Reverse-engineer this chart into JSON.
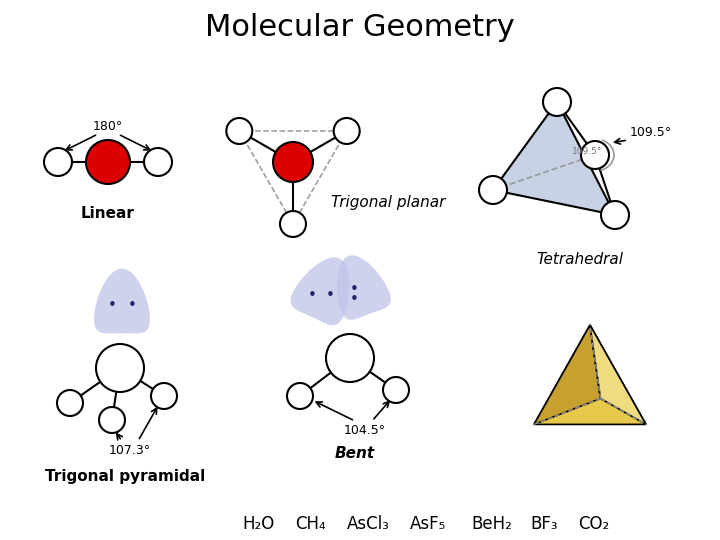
{
  "title": "Molecular Geometry",
  "title_fontsize": 22,
  "background_color": "#ffffff",
  "linear_label": "Linear",
  "trigonal_planar_label": "Trigonal planar",
  "tetrahedral_label": "Tetrahedral",
  "trigonal_pyramidal_label": "Trigonal pyramidal",
  "bent_label": "Bent",
  "angle_linear": "180°",
  "angle_tetrahedral": "109.5°",
  "angle_trig_pyr": "107.3°",
  "angle_bent": "104.5°",
  "bottom_labels": [
    "H₂O",
    "CH₄",
    "AsCl₃",
    "AsF₅",
    "BeH₂",
    "BF₃",
    "CO₂"
  ],
  "red_fill": "#dd0000",
  "blue_fill": "#aabbd8",
  "lp_fill": "#c0c4e8",
  "gold_fill": "#e8c84a",
  "gold_dark": "#c8a030",
  "gold_light": "#f0dc80",
  "atom_fill": "#ffffff",
  "atom_edge": "#000000",
  "line_color": "#000000",
  "dashed_color": "#999999",
  "dot_color": "#222266",
  "label_fontsize": 11,
  "label_bold": true
}
